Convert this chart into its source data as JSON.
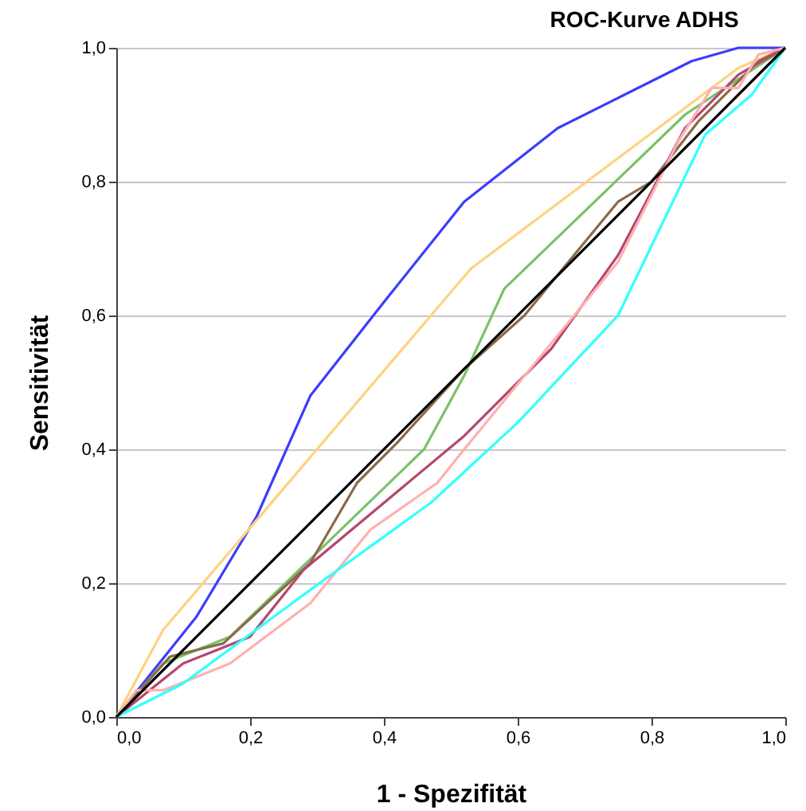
{
  "chart_data": {
    "type": "line",
    "title": "ROC-Kurve ADHS",
    "xlabel": "1 - Spezifität",
    "ylabel": "Sensitivität",
    "xlim": [
      0,
      1
    ],
    "ylim": [
      0,
      1
    ],
    "xticks": [
      {
        "value": 0,
        "label": "0,0"
      },
      {
        "value": 0.2,
        "label": "0,2"
      },
      {
        "value": 0.4,
        "label": "0,4"
      },
      {
        "value": 0.6,
        "label": "0,6"
      },
      {
        "value": 0.8,
        "label": "0,8"
      },
      {
        "value": 1,
        "label": "1,0"
      }
    ],
    "yticks": [
      {
        "value": 0,
        "label": "0,0"
      },
      {
        "value": 0.2,
        "label": "0,2"
      },
      {
        "value": 0.4,
        "label": "0,4"
      },
      {
        "value": 0.6,
        "label": "0,6"
      },
      {
        "value": 0.8,
        "label": "0,8"
      },
      {
        "value": 1,
        "label": "1,0"
      }
    ],
    "grid": "y",
    "legend": false,
    "marker": "none",
    "line_style": "solid",
    "series": [
      {
        "color": "#3c3cff",
        "x": [
          0,
          0.12,
          0.21,
          0.29,
          0.4,
          0.52,
          0.66,
          0.76,
          0.86,
          0.93,
          1
        ],
        "values": [
          0,
          0.15,
          0.3,
          0.48,
          0.62,
          0.77,
          0.88,
          0.93,
          0.98,
          1,
          1
        ]
      },
      {
        "color": "#ffd27f",
        "x": [
          0,
          0.07,
          0.53,
          0.93,
          1
        ],
        "values": [
          0,
          0.13,
          0.67,
          0.97,
          1
        ]
      },
      {
        "color": "#79c267",
        "x": [
          0,
          0.07,
          0.17,
          0.46,
          0.52,
          0.58,
          0.85,
          1
        ],
        "values": [
          0,
          0.08,
          0.12,
          0.4,
          0.51,
          0.64,
          0.9,
          1
        ]
      },
      {
        "color": "#8b6a4a",
        "x": [
          0,
          0.08,
          0.16,
          0.29,
          0.36,
          0.42,
          0.52,
          0.61,
          0.75,
          0.8,
          0.87,
          0.96,
          1
        ],
        "values": [
          0,
          0.09,
          0.11,
          0.23,
          0.35,
          0.41,
          0.52,
          0.6,
          0.77,
          0.8,
          0.89,
          0.98,
          1
        ]
      },
      {
        "color": "#b5476f",
        "x": [
          0,
          0.1,
          0.2,
          0.28,
          0.52,
          0.65,
          0.75,
          0.85,
          0.93,
          1
        ],
        "values": [
          0,
          0.08,
          0.12,
          0.22,
          0.42,
          0.55,
          0.69,
          0.88,
          0.96,
          1
        ]
      },
      {
        "color": "#ffb0b0",
        "x": [
          0,
          0.03,
          0.07,
          0.17,
          0.29,
          0.38,
          0.48,
          0.52,
          0.75,
          0.84,
          0.89,
          0.93,
          0.96,
          1
        ],
        "values": [
          0,
          0.04,
          0.04,
          0.08,
          0.17,
          0.28,
          0.35,
          0.4,
          0.68,
          0.86,
          0.94,
          0.94,
          0.99,
          1
        ]
      },
      {
        "color": "#33ffff",
        "x": [
          0,
          0.1,
          0.29,
          0.47,
          0.6,
          0.75,
          0.88,
          0.95,
          1
        ],
        "values": [
          0,
          0.05,
          0.19,
          0.32,
          0.44,
          0.6,
          0.87,
          0.93,
          1
        ]
      },
      {
        "color": "#000000",
        "x": [
          0,
          1
        ],
        "values": [
          0,
          1
        ]
      }
    ]
  }
}
